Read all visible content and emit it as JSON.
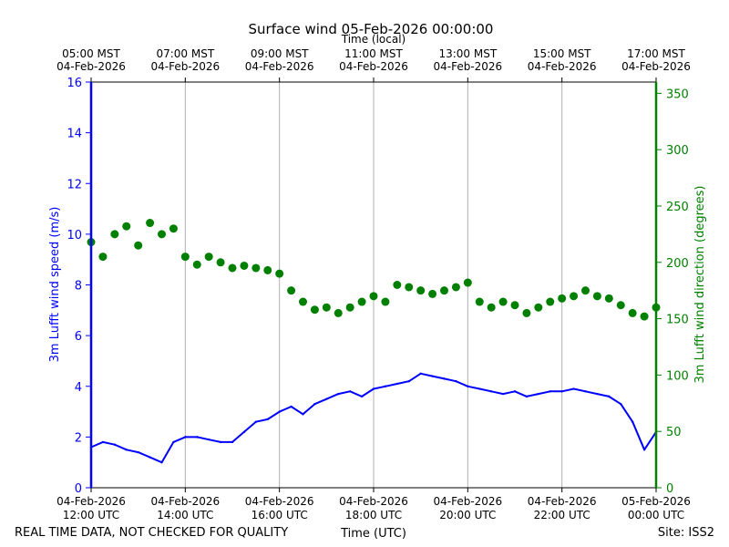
{
  "chart_data": {
    "type": "line",
    "title": "Surface wind 05-Feb-2026 00:00:00",
    "top_axis_label": "Time (local)",
    "xlabel": "Time (UTC)",
    "ylabel_left": "3m Lufft wind speed (m/s)",
    "ylabel_right": "3m Lufft wind direction (degrees)",
    "footer_left": "REAL TIME DATA, NOT CHECKED FOR QUALITY",
    "footer_right": "Site: ISS2",
    "xlim_hours_utc": [
      12,
      24
    ],
    "ylim_left": [
      0,
      16
    ],
    "ylim_right": [
      0,
      360
    ],
    "grid": "vertical",
    "colors": {
      "speed": "#0000ff",
      "direction": "#008000",
      "grid": "#b0b0b0",
      "axis": "#000000"
    },
    "left_ticks": [
      "0",
      "2",
      "4",
      "6",
      "8",
      "10",
      "12",
      "14",
      "16"
    ],
    "right_ticks": [
      "0",
      "50",
      "100",
      "150",
      "200",
      "250",
      "300",
      "350"
    ],
    "bottom_ticks": [
      {
        "l1": "04-Feb-2026",
        "l2": "12:00 UTC"
      },
      {
        "l1": "04-Feb-2026",
        "l2": "14:00 UTC"
      },
      {
        "l1": "04-Feb-2026",
        "l2": "16:00 UTC"
      },
      {
        "l1": "04-Feb-2026",
        "l2": "18:00 UTC"
      },
      {
        "l1": "04-Feb-2026",
        "l2": "20:00 UTC"
      },
      {
        "l1": "04-Feb-2026",
        "l2": "22:00 UTC"
      },
      {
        "l1": "05-Feb-2026",
        "l2": "00:00 UTC"
      }
    ],
    "top_ticks": [
      {
        "l1": "05:00 MST",
        "l2": "04-Feb-2026"
      },
      {
        "l1": "07:00 MST",
        "l2": "04-Feb-2026"
      },
      {
        "l1": "09:00 MST",
        "l2": "04-Feb-2026"
      },
      {
        "l1": "11:00 MST",
        "l2": "04-Feb-2026"
      },
      {
        "l1": "13:00 MST",
        "l2": "04-Feb-2026"
      },
      {
        "l1": "15:00 MST",
        "l2": "04-Feb-2026"
      },
      {
        "l1": "17:00 MST",
        "l2": "04-Feb-2026"
      }
    ],
    "series": [
      {
        "name": "3m Lufft wind speed (m/s)",
        "axis": "left",
        "style": "line",
        "x": [
          12.0,
          12.25,
          12.5,
          12.75,
          13.0,
          13.25,
          13.5,
          13.75,
          14.0,
          14.25,
          14.5,
          14.75,
          15.0,
          15.25,
          15.5,
          15.75,
          16.0,
          16.25,
          16.5,
          16.75,
          17.0,
          17.25,
          17.5,
          17.75,
          18.0,
          18.25,
          18.5,
          18.75,
          19.0,
          19.25,
          19.5,
          19.75,
          20.0,
          20.25,
          20.5,
          20.75,
          21.0,
          21.25,
          21.5,
          21.75,
          22.0,
          22.25,
          22.5,
          22.75,
          23.0,
          23.25,
          23.5,
          23.75,
          24.0
        ],
        "y": [
          1.6,
          1.8,
          1.7,
          1.5,
          1.4,
          1.2,
          1.0,
          1.8,
          2.0,
          2.0,
          1.9,
          1.8,
          1.8,
          2.2,
          2.6,
          2.7,
          3.0,
          3.2,
          2.9,
          3.3,
          3.5,
          3.7,
          3.8,
          3.6,
          3.9,
          4.0,
          4.1,
          4.2,
          4.5,
          4.4,
          4.3,
          4.2,
          4.0,
          3.9,
          3.8,
          3.7,
          3.8,
          3.6,
          3.7,
          3.8,
          3.8,
          3.9,
          3.8,
          3.7,
          3.6,
          3.3,
          2.6,
          1.5,
          2.2
        ]
      },
      {
        "name": "3m Lufft wind direction (degrees)",
        "axis": "right",
        "style": "markers",
        "x": [
          12.0,
          12.25,
          12.5,
          12.75,
          13.0,
          13.25,
          13.5,
          13.75,
          14.0,
          14.25,
          14.5,
          14.75,
          15.0,
          15.25,
          15.5,
          15.75,
          16.0,
          16.25,
          16.5,
          16.75,
          17.0,
          17.25,
          17.5,
          17.75,
          18.0,
          18.25,
          18.5,
          18.75,
          19.0,
          19.25,
          19.5,
          19.75,
          20.0,
          20.25,
          20.5,
          20.75,
          21.0,
          21.25,
          21.5,
          21.75,
          22.0,
          22.25,
          22.5,
          22.75,
          23.0,
          23.25,
          23.5,
          23.75,
          24.0
        ],
        "y": [
          218,
          205,
          225,
          232,
          215,
          235,
          225,
          230,
          205,
          198,
          205,
          200,
          195,
          197,
          195,
          193,
          190,
          175,
          165,
          158,
          160,
          155,
          160,
          165,
          170,
          165,
          180,
          178,
          175,
          172,
          175,
          178,
          182,
          165,
          160,
          165,
          162,
          155,
          160,
          165,
          168,
          170,
          175,
          170,
          168,
          162,
          155,
          152,
          160
        ]
      }
    ]
  }
}
